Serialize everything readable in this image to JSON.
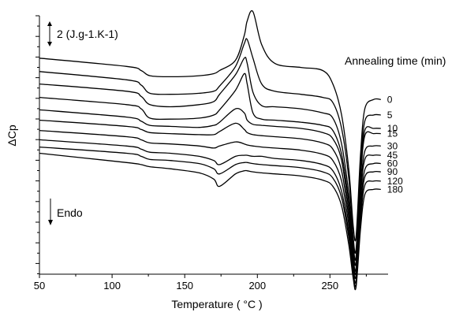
{
  "chart_data": {
    "type": "line",
    "title": "",
    "xlabel": "Temperature ( °C )",
    "ylabel": "ΔCp",
    "xlim": [
      50,
      290
    ],
    "x_ticks": [
      50,
      100,
      150,
      200,
      250
    ],
    "ylim": [
      -25,
      0
    ],
    "y_tick_labels_shown": false,
    "grid": false,
    "legend": {
      "title": "Annealing time (min)",
      "placement": "right, at curve ends"
    },
    "annotations": {
      "scale_bar": "2  (J.g-1.K-1)",
      "endo": "Endo"
    },
    "curve_points_x": [
      50,
      110,
      120,
      126,
      140,
      160,
      170,
      174,
      185,
      191,
      193,
      197,
      203,
      212,
      230,
      245,
      252,
      258,
      263,
      266,
      268,
      271,
      274,
      280,
      285
    ],
    "series": [
      {
        "name": "0",
        "values": [
          -4.1,
          -4.9,
          -5.3,
          -5.8,
          -5.9,
          -5.8,
          -5.6,
          -5.3,
          -4.3,
          -1.9,
          -0.5,
          0.4,
          -2.8,
          -4.6,
          -5.0,
          -5.3,
          -6.6,
          -9.6,
          -14.9,
          -20.3,
          -21.3,
          -13.5,
          -9.0,
          -8.1,
          -8.1
        ]
      },
      {
        "name": "5",
        "values": [
          -5.4,
          -6.2,
          -6.7,
          -7.5,
          -7.6,
          -7.5,
          -7.3,
          -6.8,
          -4.9,
          -2.7,
          -2.3,
          -4.1,
          -6.6,
          -7.3,
          -7.6,
          -7.9,
          -8.4,
          -10.9,
          -15.8,
          -21.4,
          -22.5,
          -14.6,
          -10.2,
          -9.6,
          -9.6
        ]
      },
      {
        "name": "10",
        "values": [
          -6.6,
          -7.3,
          -7.8,
          -8.6,
          -8.8,
          -8.6,
          -8.3,
          -7.6,
          -5.7,
          -4.1,
          -4.6,
          -7.4,
          -8.7,
          -8.8,
          -9.0,
          -9.4,
          -9.9,
          -12.4,
          -17.3,
          -22.1,
          -23.2,
          -15.2,
          -11.1,
          -10.9,
          -10.9
        ]
      },
      {
        "name": "15",
        "values": [
          -7.9,
          -8.6,
          -9.0,
          -9.9,
          -10.0,
          -9.9,
          -9.6,
          -9.1,
          -7.2,
          -5.6,
          -6.6,
          -9.4,
          -10.0,
          -10.1,
          -10.3,
          -10.6,
          -11.1,
          -13.4,
          -18.1,
          -22.7,
          -23.7,
          -15.9,
          -11.6,
          -11.4,
          -11.4
        ]
      },
      {
        "name": "30",
        "values": [
          -9.1,
          -9.8,
          -10.2,
          -10.6,
          -10.7,
          -10.8,
          -10.6,
          -10.3,
          -9.0,
          -9.4,
          -10.1,
          -10.5,
          -10.6,
          -10.7,
          -10.9,
          -11.3,
          -11.9,
          -14.0,
          -18.9,
          -23.3,
          -24.3,
          -17.0,
          -13.1,
          -12.6,
          -12.6
        ]
      },
      {
        "name": "45",
        "values": [
          -10.1,
          -10.7,
          -11.0,
          -11.3,
          -11.4,
          -11.5,
          -11.5,
          -11.2,
          -10.4,
          -11.0,
          -11.3,
          -11.5,
          -11.6,
          -11.7,
          -11.9,
          -12.3,
          -12.9,
          -15.0,
          -19.6,
          -23.8,
          -24.6,
          -17.6,
          -13.9,
          -13.5,
          -13.5
        ]
      },
      {
        "name": "60",
        "values": [
          -11.1,
          -11.7,
          -12.0,
          -12.3,
          -12.4,
          -12.6,
          -12.8,
          -12.6,
          -12.2,
          -12.4,
          -12.5,
          -12.6,
          -12.7,
          -12.8,
          -13.0,
          -13.4,
          -14.0,
          -16.0,
          -20.3,
          -24.3,
          -25.0,
          -18.6,
          -14.9,
          -14.3,
          -14.3
        ]
      },
      {
        "name": "90",
        "values": [
          -12.0,
          -12.6,
          -12.9,
          -13.2,
          -13.3,
          -13.6,
          -14.0,
          -14.4,
          -13.6,
          -13.5,
          -13.5,
          -13.6,
          -13.6,
          -13.8,
          -14.0,
          -14.4,
          -15.0,
          -17.0,
          -21.0,
          -24.7,
          -25.5,
          -19.2,
          -15.6,
          -15.1,
          -15.1
        ]
      },
      {
        "name": "120",
        "values": [
          -12.7,
          -13.3,
          -13.6,
          -13.9,
          -14.0,
          -14.3,
          -14.8,
          -15.3,
          -14.4,
          -14.2,
          -14.2,
          -14.3,
          -14.4,
          -14.5,
          -14.7,
          -15.1,
          -15.7,
          -17.6,
          -21.5,
          -25.0,
          -25.9,
          -19.9,
          -16.4,
          -16.0,
          -16.0
        ]
      },
      {
        "name": "180",
        "values": [
          -13.3,
          -14.2,
          -14.4,
          -14.6,
          -14.8,
          -15.2,
          -15.8,
          -16.5,
          -15.3,
          -15.0,
          -15.0,
          -15.1,
          -15.2,
          -15.3,
          -15.5,
          -15.9,
          -16.5,
          -18.4,
          -22.2,
          -25.4,
          -26.2,
          -20.7,
          -17.3,
          -16.8,
          -16.8
        ]
      }
    ]
  }
}
